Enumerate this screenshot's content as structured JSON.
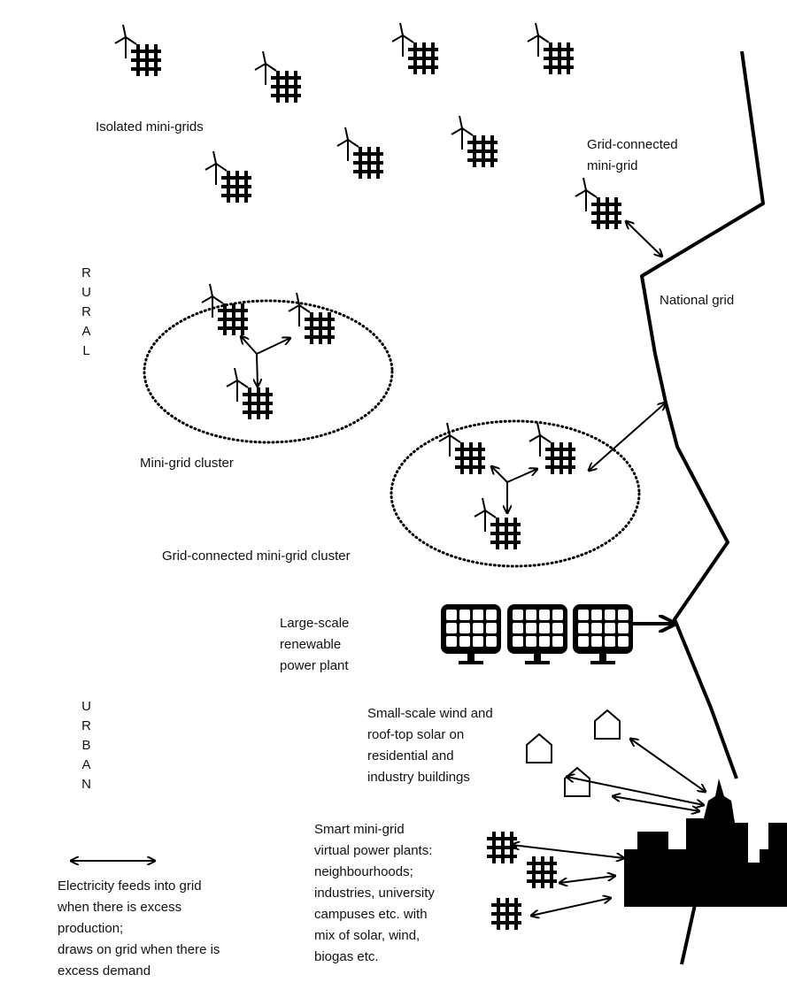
{
  "labels": {
    "isolated": "Isolated mini-grids",
    "grid_connected": [
      "Grid-connected",
      "mini-grid"
    ],
    "national_grid": "National grid",
    "rural": "RURAL",
    "cluster": "Mini-grid cluster",
    "grid_connected_cluster": "Grid-connected mini-grid cluster",
    "large_scale": [
      "Large-scale",
      "renewable",
      "power plant"
    ],
    "urban": "URBAN",
    "small_scale": [
      "Small-scale wind and",
      "roof-top solar on",
      "residential and",
      "industry buildings"
    ],
    "smart": [
      "Smart mini-grid",
      "virtual power plants:",
      "neighbourhoods;",
      "industries, university",
      "campuses etc. with",
      "mix of solar, wind,",
      "biogas etc."
    ],
    "legend": [
      "Electricity feeds into grid",
      "when there is excess",
      "production;",
      "draws on grid when there is",
      "excess demand"
    ]
  }
}
